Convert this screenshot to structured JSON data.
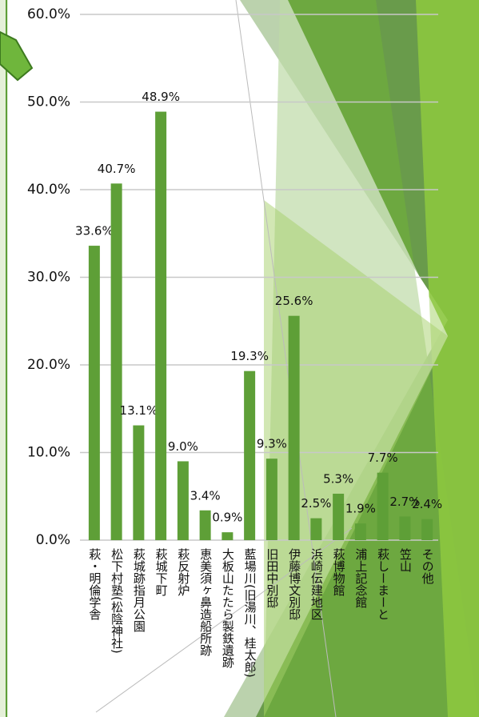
{
  "chart_data": {
    "type": "bar",
    "categories": [
      "萩・明倫学舎",
      "松下村塾(松陰神社)",
      "萩城跡指月公園",
      "萩城下町",
      "萩反射炉",
      "恵美須ヶ鼻造船所跡",
      "大板山たたら製鉄遺跡",
      "藍場川(旧湯川、桂太郎)",
      "旧田中別邸",
      "伊藤博文別邸",
      "浜崎伝建地区",
      "萩博物館",
      "浦上記念館",
      "萩しーまーと",
      "笠山",
      "その他"
    ],
    "values": [
      33.6,
      40.7,
      13.1,
      48.9,
      9.0,
      3.4,
      0.9,
      19.3,
      9.3,
      25.6,
      2.5,
      5.3,
      1.9,
      7.7,
      2.7,
      2.4
    ],
    "value_labels": [
      "33.6%",
      "40.7%",
      "13.1%",
      "48.9%",
      "9.0%",
      "3.4%",
      "0.9%",
      "19.3%",
      "9.3%",
      "25.6%",
      "2.5%",
      "5.3%",
      "1.9%",
      "7.7%",
      "2.7%",
      "2.4%"
    ],
    "color": "#5e9f37",
    "ylim": [
      0,
      60
    ],
    "yticks": [
      {
        "value": 0,
        "label": "0.0%"
      },
      {
        "value": 10,
        "label": "10.0%"
      },
      {
        "value": 20,
        "label": "20.0%"
      },
      {
        "value": 30,
        "label": "30.0%"
      },
      {
        "value": 40,
        "label": "40.0%"
      },
      {
        "value": 50,
        "label": "50.0%"
      },
      {
        "value": 60,
        "label": "60.0%"
      }
    ],
    "grid": true
  }
}
